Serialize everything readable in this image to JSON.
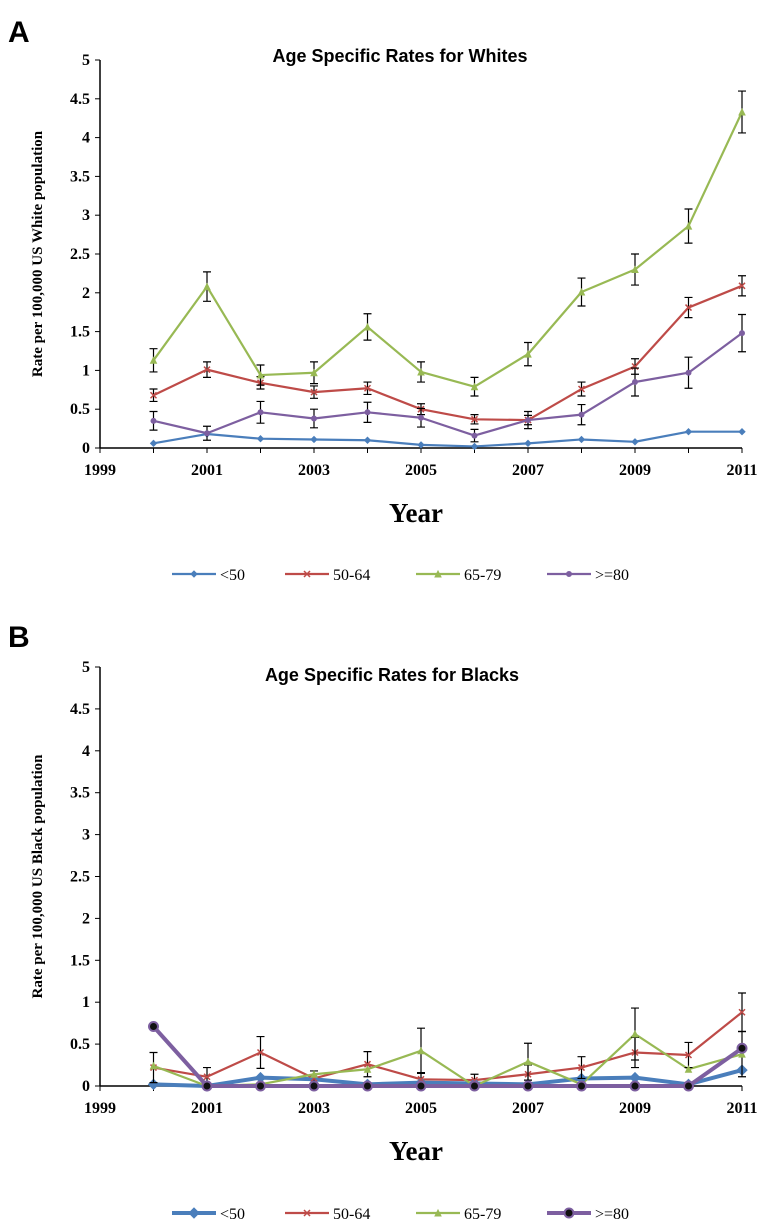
{
  "chart_data": [
    {
      "panel": "A",
      "type": "line",
      "title": "Age Specific Rates for Whites",
      "xlabel": "Year",
      "ylabel": "Rate per 100,000 US White population",
      "xlim": [
        1999,
        2011
      ],
      "ylim": [
        0,
        5
      ],
      "xticks": [
        "1999",
        "2001",
        "2003",
        "2005",
        "2007",
        "2009",
        "2011"
      ],
      "yticks": [
        "0",
        "0.5",
        "1",
        "1.5",
        "2",
        "2.5",
        "3",
        "3.5",
        "4",
        "4.5",
        "5"
      ],
      "x": [
        2000,
        2001,
        2002,
        2003,
        2004,
        2005,
        2006,
        2007,
        2008,
        2009,
        2010,
        2011
      ],
      "legend_position": "bottom",
      "series": [
        {
          "name": "<50",
          "color": "#4a7ebb",
          "marker": "diamond",
          "values": [
            0.06,
            0.18,
            0.12,
            0.11,
            0.1,
            0.04,
            0.02,
            0.06,
            0.11,
            0.08,
            0.21,
            0.21
          ],
          "errors": [
            0,
            0,
            0,
            0,
            0,
            0,
            0,
            0,
            0,
            0,
            0,
            0
          ]
        },
        {
          "name": "50-64",
          "color": "#be4b48",
          "marker": "x",
          "values": [
            0.68,
            1.01,
            0.84,
            0.72,
            0.77,
            0.5,
            0.37,
            0.36,
            0.76,
            1.05,
            1.81,
            2.09
          ],
          "errors": [
            0.08,
            0.1,
            0.08,
            0.08,
            0.08,
            0.07,
            0.06,
            0.06,
            0.09,
            0.1,
            0.13,
            0.13
          ]
        },
        {
          "name": "65-79",
          "color": "#98b954",
          "marker": "triangle",
          "values": [
            1.13,
            2.08,
            0.94,
            0.97,
            1.56,
            0.98,
            0.79,
            1.21,
            2.01,
            2.3,
            2.86,
            4.33
          ],
          "errors": [
            0.15,
            0.19,
            0.13,
            0.14,
            0.17,
            0.13,
            0.12,
            0.15,
            0.18,
            0.2,
            0.22,
            0.27
          ]
        },
        {
          "name": ">=80",
          "color": "#7d5fa0",
          "marker": "circle",
          "values": [
            0.35,
            0.19,
            0.46,
            0.38,
            0.46,
            0.39,
            0.16,
            0.36,
            0.43,
            0.85,
            0.97,
            1.48
          ],
          "errors": [
            0.12,
            0.09,
            0.14,
            0.12,
            0.13,
            0.12,
            0.08,
            0.11,
            0.13,
            0.18,
            0.2,
            0.24
          ]
        }
      ]
    },
    {
      "panel": "B",
      "type": "line",
      "title": "Age Specific Rates for Blacks",
      "xlabel": "Year",
      "ylabel": "Rate per 100,000 US Black population",
      "xlim": [
        1999,
        2011
      ],
      "ylim": [
        0,
        5
      ],
      "xticks": [
        "1999",
        "2001",
        "2003",
        "2005",
        "2007",
        "2009",
        "2011"
      ],
      "yticks": [
        "0",
        "0.5",
        "1",
        "1.5",
        "2",
        "2.5",
        "3",
        "3.5",
        "4",
        "4.5",
        "5"
      ],
      "x": [
        2000,
        2001,
        2002,
        2003,
        2004,
        2005,
        2006,
        2007,
        2008,
        2009,
        2010,
        2011
      ],
      "legend_position": "bottom",
      "series": [
        {
          "name": "<50",
          "color": "#4a7ebb",
          "marker": "diamond",
          "thick": true,
          "values": [
            0.02,
            0.0,
            0.1,
            0.08,
            0.02,
            0.04,
            0.03,
            0.02,
            0.09,
            0.1,
            0.02,
            0.19
          ],
          "errors": [
            0,
            0,
            0,
            0,
            0,
            0,
            0,
            0,
            0,
            0,
            0,
            0
          ]
        },
        {
          "name": "50-64",
          "color": "#be4b48",
          "marker": "x",
          "values": [
            0.22,
            0.11,
            0.4,
            0.09,
            0.26,
            0.08,
            0.07,
            0.14,
            0.22,
            0.4,
            0.37,
            0.88
          ],
          "errors": [
            0.18,
            0.11,
            0.19,
            0.09,
            0.15,
            0.08,
            0.07,
            0.11,
            0.13,
            0.18,
            0.15,
            0.23
          ]
        },
        {
          "name": "65-79",
          "color": "#98b954",
          "marker": "triangle",
          "values": [
            0.24,
            0.0,
            0.02,
            0.14,
            0.2,
            0.42,
            0.0,
            0.29,
            0.02,
            0.62,
            0.2,
            0.38
          ],
          "errors": [
            0,
            0,
            0,
            0,
            0,
            0.27,
            0,
            0.22,
            0,
            0.31,
            0,
            0.27
          ]
        },
        {
          "name": ">=80",
          "color": "#7d5fa0",
          "marker": "circle",
          "thick": true,
          "values": [
            0.71,
            0.0,
            0.0,
            0.0,
            0.0,
            0.0,
            0.0,
            0.0,
            0.0,
            0.0,
            0.0,
            0.45
          ],
          "errors": [
            0,
            0,
            0,
            0,
            0,
            0,
            0,
            0,
            0,
            0,
            0,
            0
          ]
        }
      ]
    }
  ]
}
